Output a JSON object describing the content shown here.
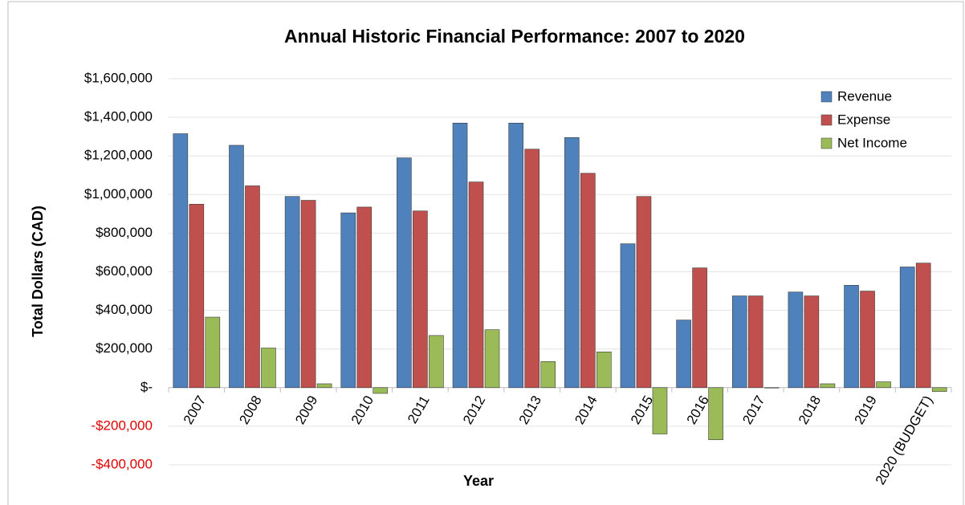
{
  "chart_data": {
    "type": "bar",
    "title": "Annual Historic Financial Performance: 2007 to 2020",
    "x_label": "Year",
    "y_label": "Total Dollars (CAD)",
    "categories": [
      "2007",
      "2008",
      "2009",
      "2010",
      "2011",
      "2012",
      "2013",
      "2014",
      "2015",
      "2016",
      "2017",
      "2018",
      "2019",
      "2020 (BUDGET)"
    ],
    "series": [
      {
        "name": "Revenue",
        "color": "#4f81bd",
        "values": [
          1315000,
          1255000,
          990000,
          905000,
          1190000,
          1370000,
          1370000,
          1295000,
          745000,
          350000,
          475000,
          495000,
          530000,
          625000
        ]
      },
      {
        "name": "Expense",
        "color": "#c0504d",
        "values": [
          950000,
          1045000,
          970000,
          935000,
          915000,
          1065000,
          1235000,
          1110000,
          990000,
          620000,
          475000,
          475000,
          500000,
          645000
        ]
      },
      {
        "name": "Net Income",
        "color": "#9bbb59",
        "values": [
          365000,
          205000,
          20000,
          -30000,
          270000,
          300000,
          135000,
          185000,
          -240000,
          -270000,
          0,
          20000,
          30000,
          -20000
        ]
      }
    ],
    "ylim": [
      -400000,
      1600000
    ],
    "yticks": [
      {
        "value": -400000,
        "label": "-$400,000"
      },
      {
        "value": -200000,
        "label": "-$200,000"
      },
      {
        "value": 0,
        "label": "$-"
      },
      {
        "value": 200000,
        "label": "$200,000"
      },
      {
        "value": 400000,
        "label": "$400,000"
      },
      {
        "value": 600000,
        "label": "$600,000"
      },
      {
        "value": 800000,
        "label": "$800,000"
      },
      {
        "value": 1000000,
        "label": "$1,000,000"
      },
      {
        "value": 1200000,
        "label": "$1,200,000"
      },
      {
        "value": 1400000,
        "label": "$1,400,000"
      },
      {
        "value": 1600000,
        "label": "$1,600,000"
      }
    ],
    "grid": true,
    "legend": "top-right"
  }
}
